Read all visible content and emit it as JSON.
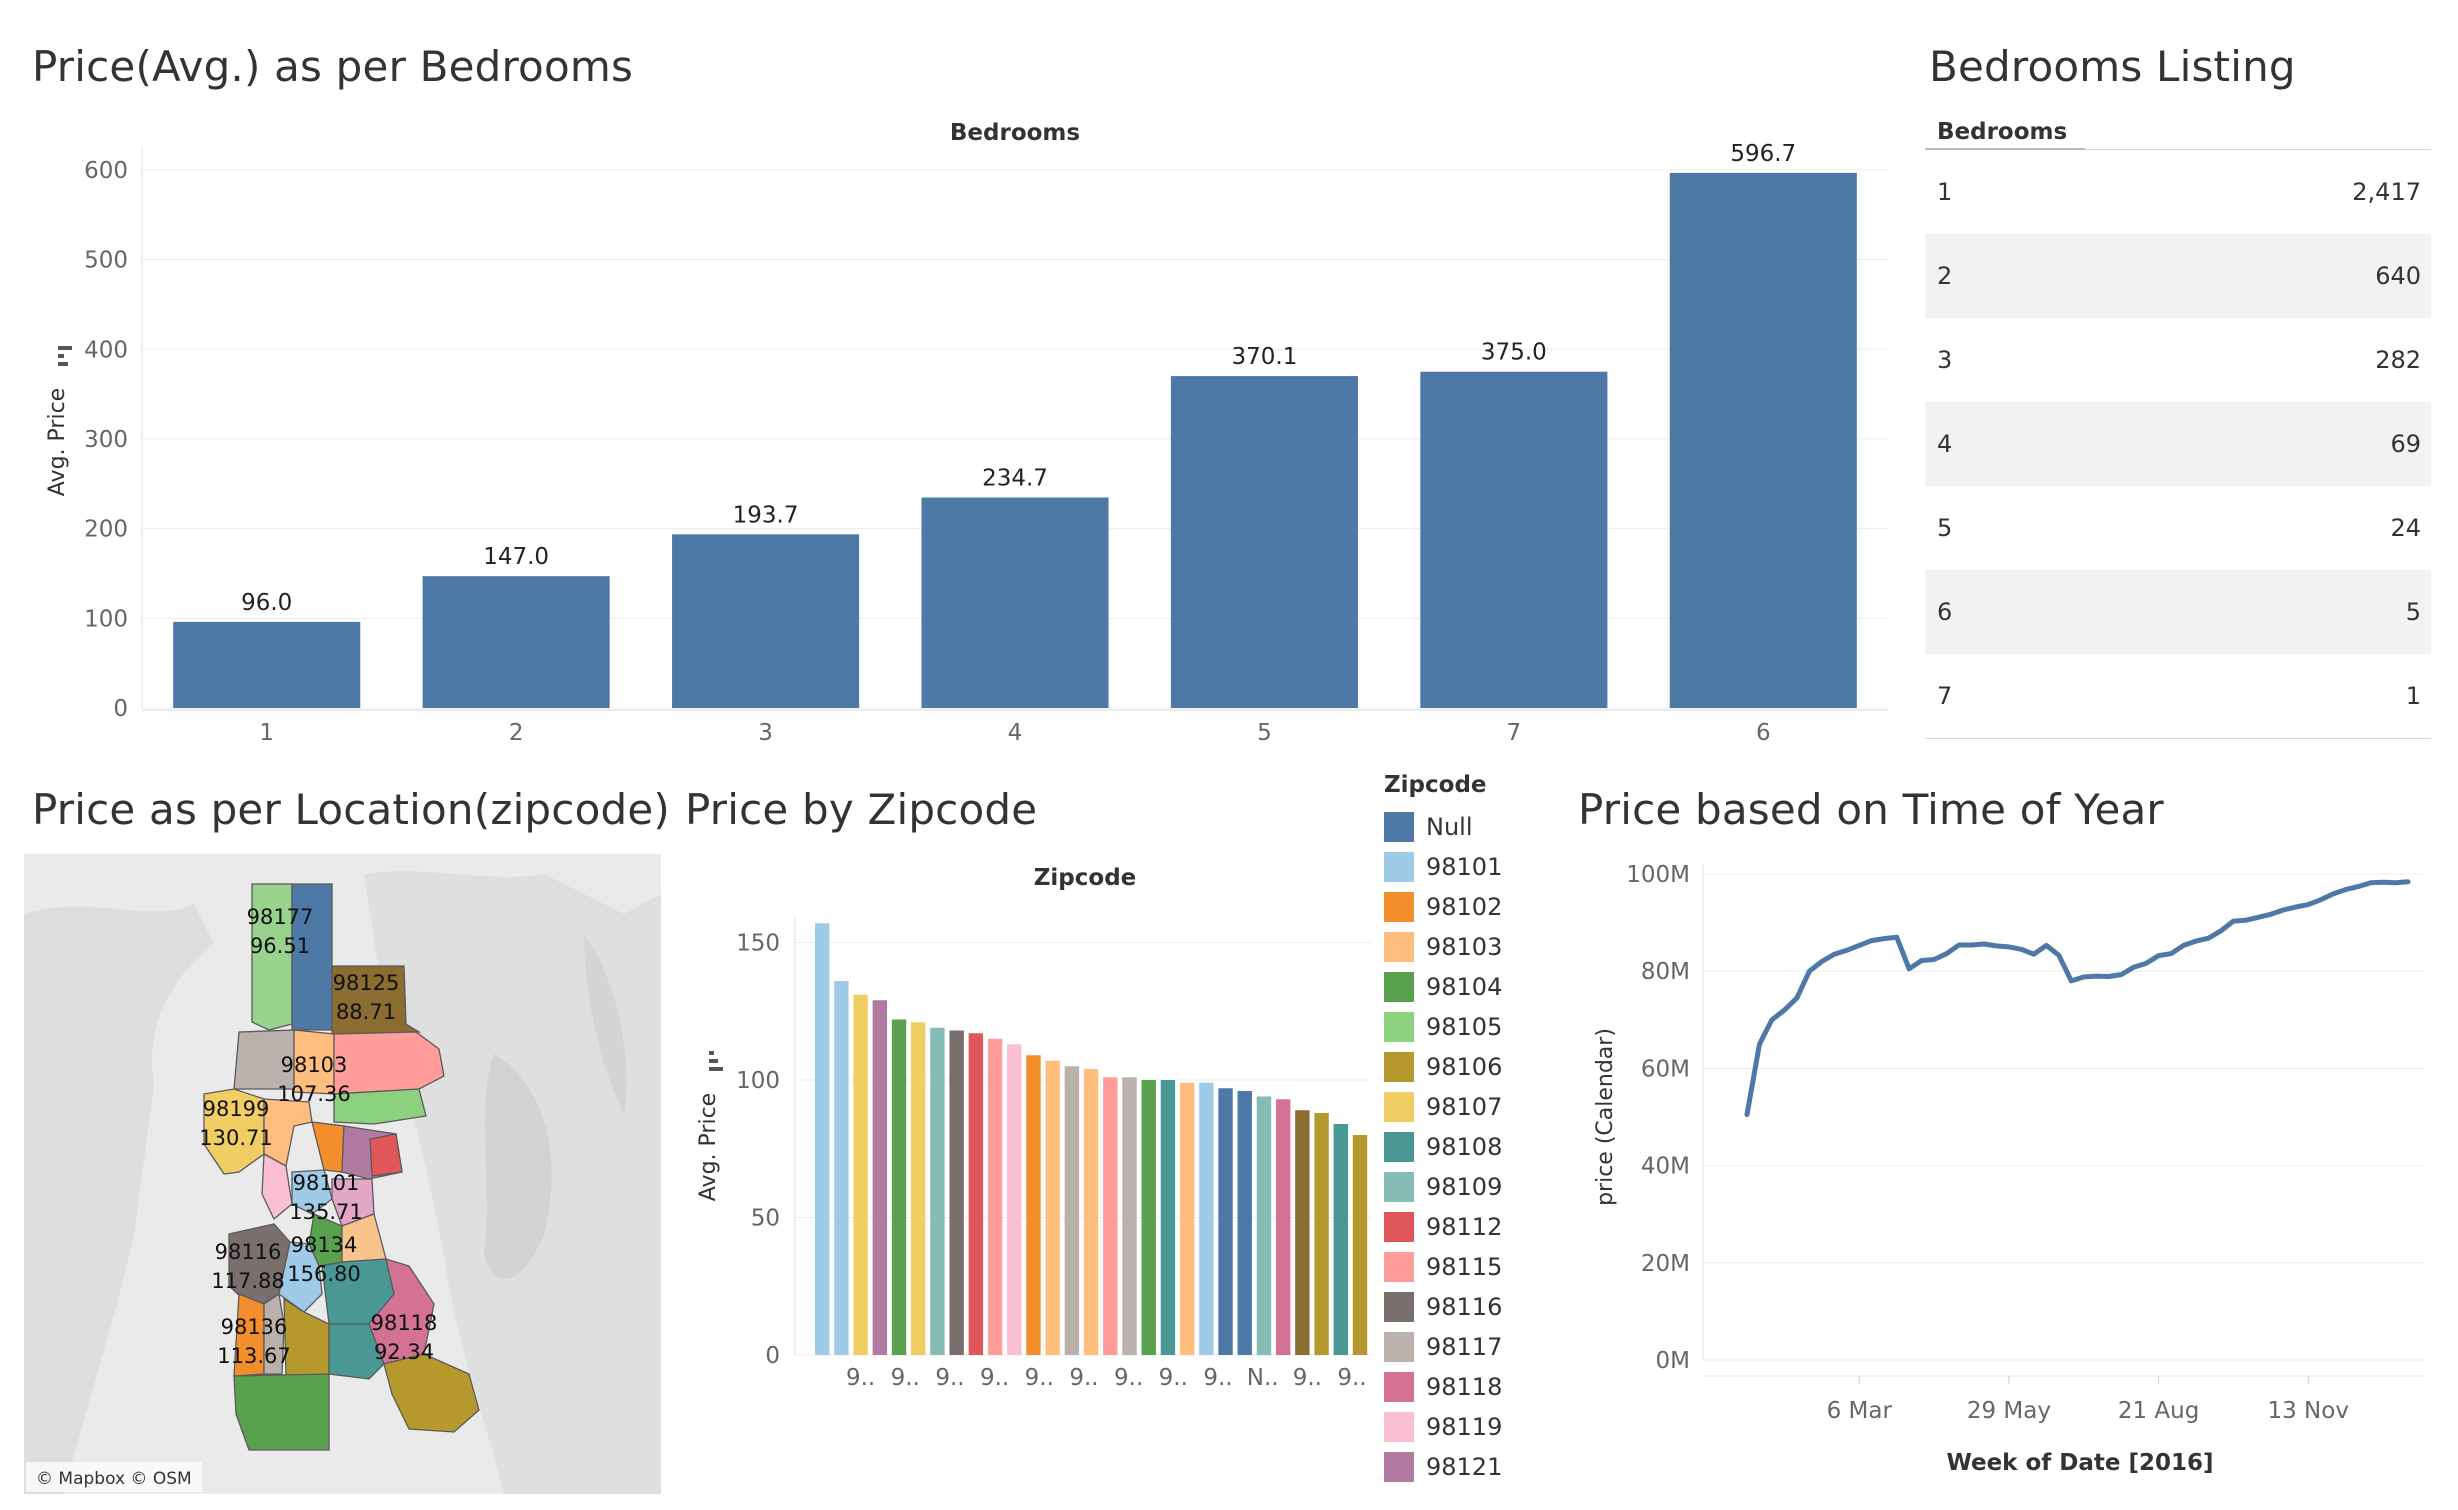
{
  "titles": {
    "bedroom_price": "Price(Avg.) as per Bedrooms",
    "bedroom_listing": "Bedrooms Listing",
    "location": "Price as per Location(zipcode)",
    "zipcode_price": "Price by Zipcode",
    "time_of_year": "Price based on Time of Year"
  },
  "bedrooms_table": {
    "header": "Bedrooms",
    "rows": [
      {
        "bedrooms": "1",
        "count": "2,417"
      },
      {
        "bedrooms": "2",
        "count": "640"
      },
      {
        "bedrooms": "3",
        "count": "282"
      },
      {
        "bedrooms": "4",
        "count": "69"
      },
      {
        "bedrooms": "5",
        "count": "24"
      },
      {
        "bedrooms": "6",
        "count": "5"
      },
      {
        "bedrooms": "7",
        "count": "1"
      }
    ]
  },
  "map": {
    "attribution": "© Mapbox © OSM",
    "regions": [
      {
        "zip": "98177",
        "value": "96.51",
        "color": "#98d28c"
      },
      {
        "zip": "98125",
        "value": "88.71",
        "color": "#8c6d31"
      },
      {
        "zip": "98103",
        "value": "107.36",
        "color": "#ffbe7d"
      },
      {
        "zip": "98199",
        "value": "130.71",
        "color": "#f1ce63"
      },
      {
        "zip": "98101",
        "value": "135.71",
        "color": "#a0cbe8"
      },
      {
        "zip": "98116",
        "value": "117.88",
        "color": "#79706e"
      },
      {
        "zip": "98134",
        "value": "156.80",
        "color": "#a0cbe8"
      },
      {
        "zip": "98136",
        "value": "113.67",
        "color": "#f28e2b"
      },
      {
        "zip": "98118",
        "value": "92.34",
        "color": "#d37295"
      }
    ]
  },
  "legend": {
    "title": "Zipcode",
    "items": [
      {
        "label": "Null",
        "color": "#4e79a7"
      },
      {
        "label": "98101",
        "color": "#a0cbe8"
      },
      {
        "label": "98102",
        "color": "#f28e2b"
      },
      {
        "label": "98103",
        "color": "#ffbe7d"
      },
      {
        "label": "98104",
        "color": "#59a14f"
      },
      {
        "label": "98105",
        "color": "#8cd17d"
      },
      {
        "label": "98106",
        "color": "#b6992d"
      },
      {
        "label": "98107",
        "color": "#f1ce63"
      },
      {
        "label": "98108",
        "color": "#499894"
      },
      {
        "label": "98109",
        "color": "#86bcb6"
      },
      {
        "label": "98112",
        "color": "#e15759"
      },
      {
        "label": "98115",
        "color": "#ff9d9a"
      },
      {
        "label": "98116",
        "color": "#79706e"
      },
      {
        "label": "98117",
        "color": "#bab0ac"
      },
      {
        "label": "98118",
        "color": "#d37295"
      },
      {
        "label": "98119",
        "color": "#fabfd2"
      },
      {
        "label": "98121",
        "color": "#b07aa1"
      }
    ]
  },
  "chart_data": [
    {
      "id": "bedrooms",
      "type": "bar",
      "title": "Price(Avg.) as per Bedrooms",
      "header": "Bedrooms",
      "ylabel": "Avg. Price",
      "categories": [
        "1",
        "2",
        "3",
        "4",
        "5",
        "7",
        "6"
      ],
      "values": [
        96.0,
        147.0,
        193.7,
        234.7,
        370.1,
        375.0,
        596.7
      ],
      "labels": [
        "96.0",
        "147.0",
        "193.7",
        "234.7",
        "370.1",
        "375.0",
        "596.7"
      ],
      "ylim": [
        0,
        620
      ],
      "yticks": [
        0,
        100,
        200,
        300,
        400,
        500,
        600
      ],
      "color": "#4e79a7",
      "grid": true
    },
    {
      "id": "zipcode",
      "type": "bar",
      "title": "Price by Zipcode",
      "header": "Zipcode",
      "ylabel": "Avg. Price",
      "values": [
        157,
        136,
        131,
        129,
        122,
        121,
        119,
        118,
        117,
        115,
        113,
        109,
        107,
        105,
        104,
        101,
        101,
        100,
        100,
        99,
        99,
        97,
        96,
        94,
        93,
        89,
        88,
        84,
        80
      ],
      "colors": [
        "#a0cbe8",
        "#a0cbe8",
        "#f1ce63",
        "#b07aa1",
        "#59a14f",
        "#f1ce63",
        "#86bcb6",
        "#79706e",
        "#e15759",
        "#ff9d9a",
        "#fabfd2",
        "#f28e2b",
        "#ffbe7d",
        "#bab0ac",
        "#ffbe7d",
        "#ff9d9a",
        "#bab0ac",
        "#59a14f",
        "#499894",
        "#ffbe7d",
        "#a0cbe8",
        "#4e79a7",
        "#4e79a7",
        "#86bcb6",
        "#d37295",
        "#8c6d31",
        "#b6992d",
        "#499894",
        "#b6992d"
      ],
      "tick_labels": [
        "9..",
        "9..",
        "9..",
        "9..",
        "9..",
        "9..",
        "9..",
        "9..",
        "9..",
        "N..",
        "9..",
        "9.."
      ],
      "ylim": [
        0,
        160
      ],
      "yticks": [
        0,
        50,
        100,
        150
      ],
      "grid": true
    },
    {
      "id": "time",
      "type": "line",
      "title": "Price based on Time of Year",
      "xlabel": "Week of Date [2016]",
      "ylabel": "price (Calendar)",
      "yticks": [
        "0M",
        "20M",
        "40M",
        "60M",
        "80M",
        "100M"
      ],
      "ylim": [
        0,
        100
      ],
      "xticks": [
        {
          "label": "6 Mar",
          "week": 9
        },
        {
          "label": "29 May",
          "week": 21
        },
        {
          "label": "21 Aug",
          "week": 33
        },
        {
          "label": "13 Nov",
          "week": 45
        }
      ],
      "x": [
        0,
        1,
        2,
        3,
        4,
        5,
        6,
        7,
        8,
        9,
        10,
        11,
        12,
        13,
        14,
        15,
        16,
        17,
        18,
        19,
        20,
        21,
        22,
        23,
        24,
        25,
        26,
        27,
        28,
        29,
        30,
        31,
        32,
        33,
        34,
        35,
        36,
        37,
        38,
        39,
        40,
        41,
        42,
        43,
        44,
        45,
        46,
        47,
        48,
        49,
        50,
        51,
        52,
        53
      ],
      "y": [
        50.5,
        65,
        70,
        72,
        74.5,
        80,
        82,
        83.5,
        84.3,
        85.3,
        86.3,
        86.7,
        87,
        80.5,
        82.2,
        82.4,
        83.6,
        85.4,
        85.4,
        85.6,
        85.2,
        85,
        84.5,
        83.5,
        85.3,
        83.3,
        78,
        78.8,
        79,
        78.9,
        79.3,
        80.8,
        81.6,
        83.2,
        83.6,
        85.3,
        86.2,
        86.8,
        88.3,
        90.3,
        90.5,
        91.1,
        91.7,
        92.6,
        93.2,
        93.7,
        94.7,
        95.9,
        96.8,
        97.4,
        98.2,
        98.3,
        98.2,
        98.4
      ],
      "color": "#4e79a7",
      "grid": true
    }
  ]
}
